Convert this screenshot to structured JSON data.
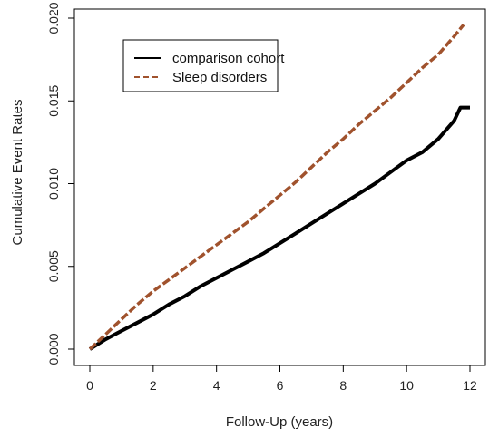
{
  "chart_data": {
    "type": "line",
    "xlabel": "Follow-Up (years)",
    "ylabel": "Cumulative Event Rates",
    "xlim": [
      0,
      12
    ],
    "ylim": [
      0,
      0.02
    ],
    "x_ticks": [
      0,
      2,
      4,
      6,
      8,
      10,
      12
    ],
    "x_tick_labels": [
      "0",
      "2",
      "4",
      "6",
      "8",
      "10",
      "12"
    ],
    "y_ticks": [
      0,
      0.005,
      0.01,
      0.015,
      0.02
    ],
    "y_tick_labels": [
      "0.000",
      "0.005",
      "0.010",
      "0.015",
      "0.020"
    ],
    "legend_position": "top-left",
    "grid": false,
    "series": [
      {
        "name": "comparison cohort",
        "color": "#000000",
        "style": "solid",
        "x": [
          0,
          0.5,
          1,
          1.5,
          2,
          2.5,
          3,
          3.5,
          4,
          4.5,
          5,
          5.5,
          6,
          6.5,
          7,
          7.5,
          8,
          8.5,
          9,
          9.5,
          10,
          10.5,
          11,
          11.5,
          11.7,
          12
        ],
        "values": [
          0,
          0.0006,
          0.0011,
          0.0016,
          0.0021,
          0.0027,
          0.0032,
          0.0038,
          0.0043,
          0.0048,
          0.0053,
          0.0058,
          0.0064,
          0.007,
          0.0076,
          0.0082,
          0.0088,
          0.0094,
          0.01,
          0.0107,
          0.0114,
          0.0119,
          0.0127,
          0.0138,
          0.0146,
          0.0146
        ]
      },
      {
        "name": "Sleep disorders",
        "color": "#a0522d",
        "style": "dashed",
        "x": [
          0,
          0.5,
          1,
          1.5,
          2,
          2.5,
          3,
          3.5,
          4,
          4.5,
          5,
          5.5,
          6,
          6.5,
          7,
          7.5,
          8,
          8.5,
          9,
          9.5,
          10,
          10.5,
          11,
          11.5,
          11.8
        ],
        "values": [
          0,
          0.0009,
          0.0018,
          0.0027,
          0.0035,
          0.0042,
          0.0049,
          0.0056,
          0.0063,
          0.007,
          0.0077,
          0.0085,
          0.0093,
          0.0101,
          0.011,
          0.0119,
          0.0127,
          0.0136,
          0.0144,
          0.0152,
          0.0161,
          0.017,
          0.0178,
          0.0189,
          0.0196
        ]
      }
    ]
  }
}
